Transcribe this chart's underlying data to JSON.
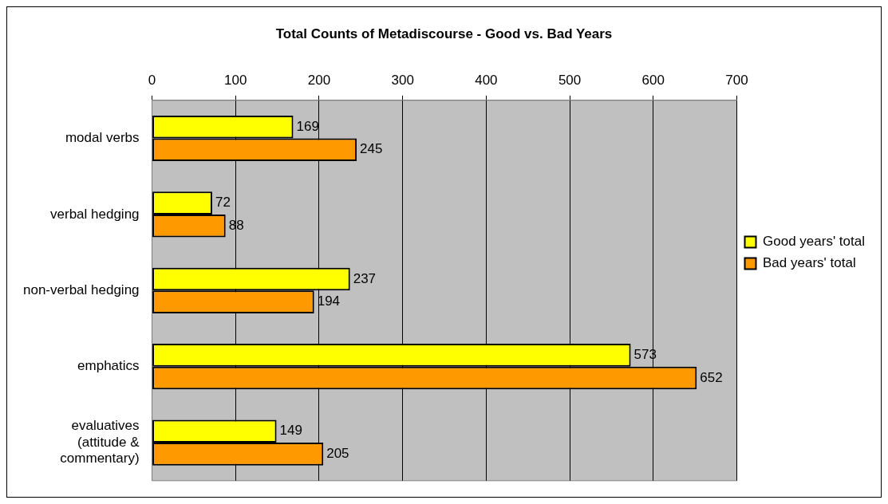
{
  "chart_data": {
    "type": "bar",
    "orientation": "horizontal",
    "title": "Total Counts of Metadiscourse - Good vs. Bad Years",
    "categories": [
      "modal verbs",
      "verbal hedging",
      "non-verbal hedging",
      "emphatics",
      "evaluatives (attitude & commentary)"
    ],
    "series": [
      {
        "name": "Good years' total",
        "color": "#ffff00",
        "values": [
          169,
          72,
          237,
          573,
          149
        ]
      },
      {
        "name": "Bad years' total",
        "color": "#ff9900",
        "values": [
          245,
          88,
          194,
          652,
          205
        ]
      }
    ],
    "xlim": [
      0,
      700
    ],
    "xticks": [
      0,
      100,
      200,
      300,
      400,
      500,
      600,
      700
    ],
    "grid": "x",
    "legend": "right",
    "data_labels": true
  }
}
